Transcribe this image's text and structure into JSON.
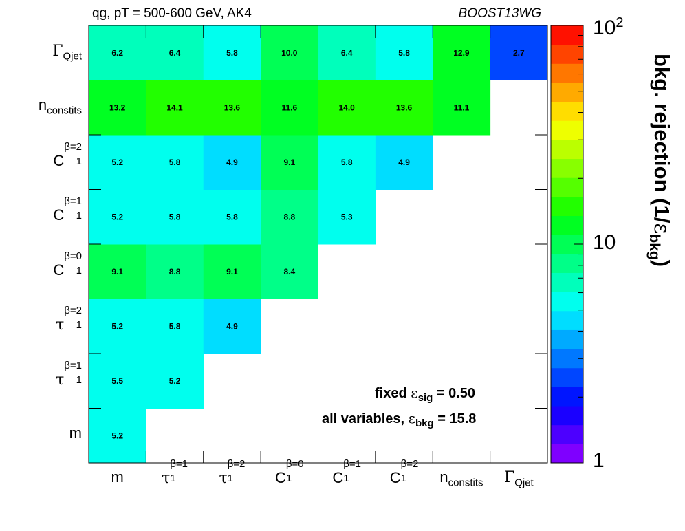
{
  "header": {
    "left": "qg, pT = 500-600 GeV, AK4",
    "right": "BOOST13WG"
  },
  "chart_data": {
    "type": "heatmap",
    "variables": [
      "m",
      "τ1β=1",
      "τ1β=2",
      "C1β=0",
      "C1β=1",
      "C1β=2",
      "nconstits",
      "ΓQjet"
    ],
    "axis_labels": [
      {
        "base": "m",
        "sub": "",
        "sup": ""
      },
      {
        "base": "τ",
        "sub": "1",
        "sup": "β=1"
      },
      {
        "base": "τ",
        "sub": "1",
        "sup": "β=2"
      },
      {
        "base": "C",
        "sub": "1",
        "sup": "β=0"
      },
      {
        "base": "C",
        "sub": "1",
        "sup": "β=1"
      },
      {
        "base": "C",
        "sub": "1",
        "sup": "β=2"
      },
      {
        "base": "n",
        "sub": "constits",
        "sup": ""
      },
      {
        "base": "Γ",
        "sub": "Qjet",
        "sup": ""
      }
    ],
    "cells": [
      [
        5.2
      ],
      [
        5.5,
        5.2
      ],
      [
        5.2,
        5.8,
        4.9
      ],
      [
        9.1,
        8.8,
        9.1,
        8.4
      ],
      [
        5.2,
        5.8,
        5.8,
        8.8,
        5.3
      ],
      [
        5.2,
        5.8,
        4.9,
        9.1,
        5.8,
        4.9
      ],
      [
        13.2,
        14.1,
        13.6,
        11.6,
        14.0,
        13.6,
        11.1
      ],
      [
        6.2,
        6.4,
        5.8,
        10.0,
        6.4,
        5.8,
        12.9,
        2.7
      ]
    ],
    "z_scale": "log",
    "zlim": [
      1,
      100
    ],
    "z_ticks": [
      "1",
      "10",
      "10"
    ],
    "z_tick_exp": "2",
    "zlabel": {
      "main": "bkg. rejection (1/",
      "sym": "ε",
      "sub": "bkg",
      "end": ")"
    },
    "annotations": {
      "fixed": {
        "pre": "fixed ",
        "sym": "ε",
        "sub": "sig",
        "post": " = 0.50"
      },
      "all": {
        "pre": "all variables, ",
        "sym": "ε",
        "sub": "bkg",
        "post": " = 15.8"
      }
    },
    "palette": [
      "#7f00ff",
      "#4c00ff",
      "#1a00ff",
      "#0015ff",
      "#0046ff",
      "#0078ff",
      "#00aaff",
      "#00ddff",
      "#00ffee",
      "#00ffbb",
      "#00ff88",
      "#00ff55",
      "#00ff22",
      "#22ff00",
      "#55ff00",
      "#88ff00",
      "#bbff00",
      "#eeff00",
      "#ffdd00",
      "#ffaa00",
      "#ff7700",
      "#ff4400",
      "#ff1100"
    ]
  }
}
